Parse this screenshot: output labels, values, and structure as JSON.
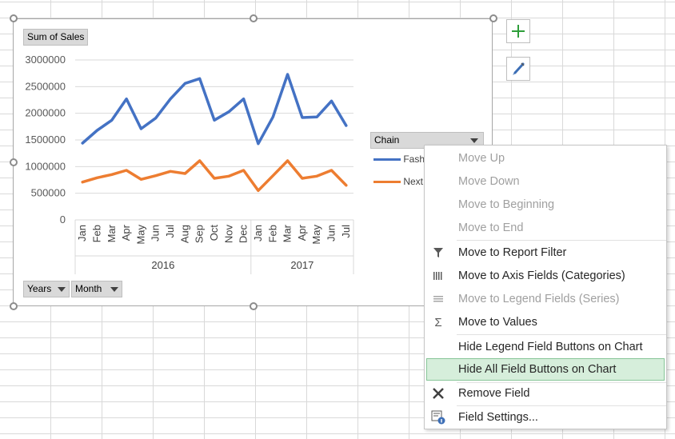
{
  "chart": {
    "values_field": "Sum of Sales",
    "legend_field": "Chain",
    "axis_fields": [
      "Years",
      "Month"
    ],
    "legend_entries": [
      "Fash",
      "Next"
    ]
  },
  "chart_data": {
    "type": "line",
    "categories": [
      "Jan",
      "Feb",
      "Mar",
      "Apr",
      "May",
      "Jun",
      "Jul",
      "Aug",
      "Sep",
      "Oct",
      "Nov",
      "Dec",
      "Jan",
      "Feb",
      "Mar",
      "Apr",
      "May",
      "Jun",
      "Jul"
    ],
    "category_groups": [
      {
        "label": "2016",
        "count": 12
      },
      {
        "label": "2017",
        "count": 7
      }
    ],
    "series": [
      {
        "name": "Fash",
        "color": "#4472c4",
        "values": [
          1440000,
          1680000,
          1870000,
          2270000,
          1710000,
          1910000,
          2270000,
          2560000,
          2650000,
          1870000,
          2030000,
          2270000,
          1430000,
          1930000,
          2730000,
          1920000,
          1930000,
          2230000,
          1770000
        ]
      },
      {
        "name": "Next",
        "color": "#ed7d31",
        "values": [
          710000,
          790000,
          850000,
          930000,
          760000,
          830000,
          910000,
          870000,
          1110000,
          780000,
          820000,
          930000,
          550000,
          830000,
          1110000,
          780000,
          820000,
          930000,
          650000
        ]
      }
    ],
    "y_ticks": [
      "3000000",
      "2500000",
      "2000000",
      "1500000",
      "1000000",
      "500000",
      "0"
    ],
    "ylim": [
      0,
      3000000
    ],
    "grid": true,
    "legend_position": "right"
  },
  "menu": {
    "items": [
      {
        "label": "Move Up",
        "enabled": false,
        "icon": "none"
      },
      {
        "label": "Move Down",
        "enabled": false,
        "icon": "none"
      },
      {
        "label": "Move to Beginning",
        "enabled": false,
        "icon": "none"
      },
      {
        "label": "Move to End",
        "enabled": false,
        "icon": "none"
      },
      {
        "label": "Move to Report Filter",
        "enabled": true,
        "icon": "filter-icon"
      },
      {
        "label": "Move to Axis Fields (Categories)",
        "enabled": true,
        "icon": "axis-fields-icon"
      },
      {
        "label": "Move to Legend Fields (Series)",
        "enabled": false,
        "icon": "legend-fields-icon"
      },
      {
        "label": "Move to Values",
        "enabled": true,
        "icon": "sigma-icon"
      },
      {
        "label": "Hide Legend Field Buttons on Chart",
        "enabled": true,
        "icon": "none"
      },
      {
        "label": "Hide All Field Buttons on Chart",
        "enabled": true,
        "icon": "none",
        "highlighted": true
      },
      {
        "label": "Remove Field",
        "enabled": true,
        "icon": "remove-icon"
      },
      {
        "label": "Field Settings...",
        "enabled": true,
        "icon": "field-settings-icon"
      }
    ]
  }
}
